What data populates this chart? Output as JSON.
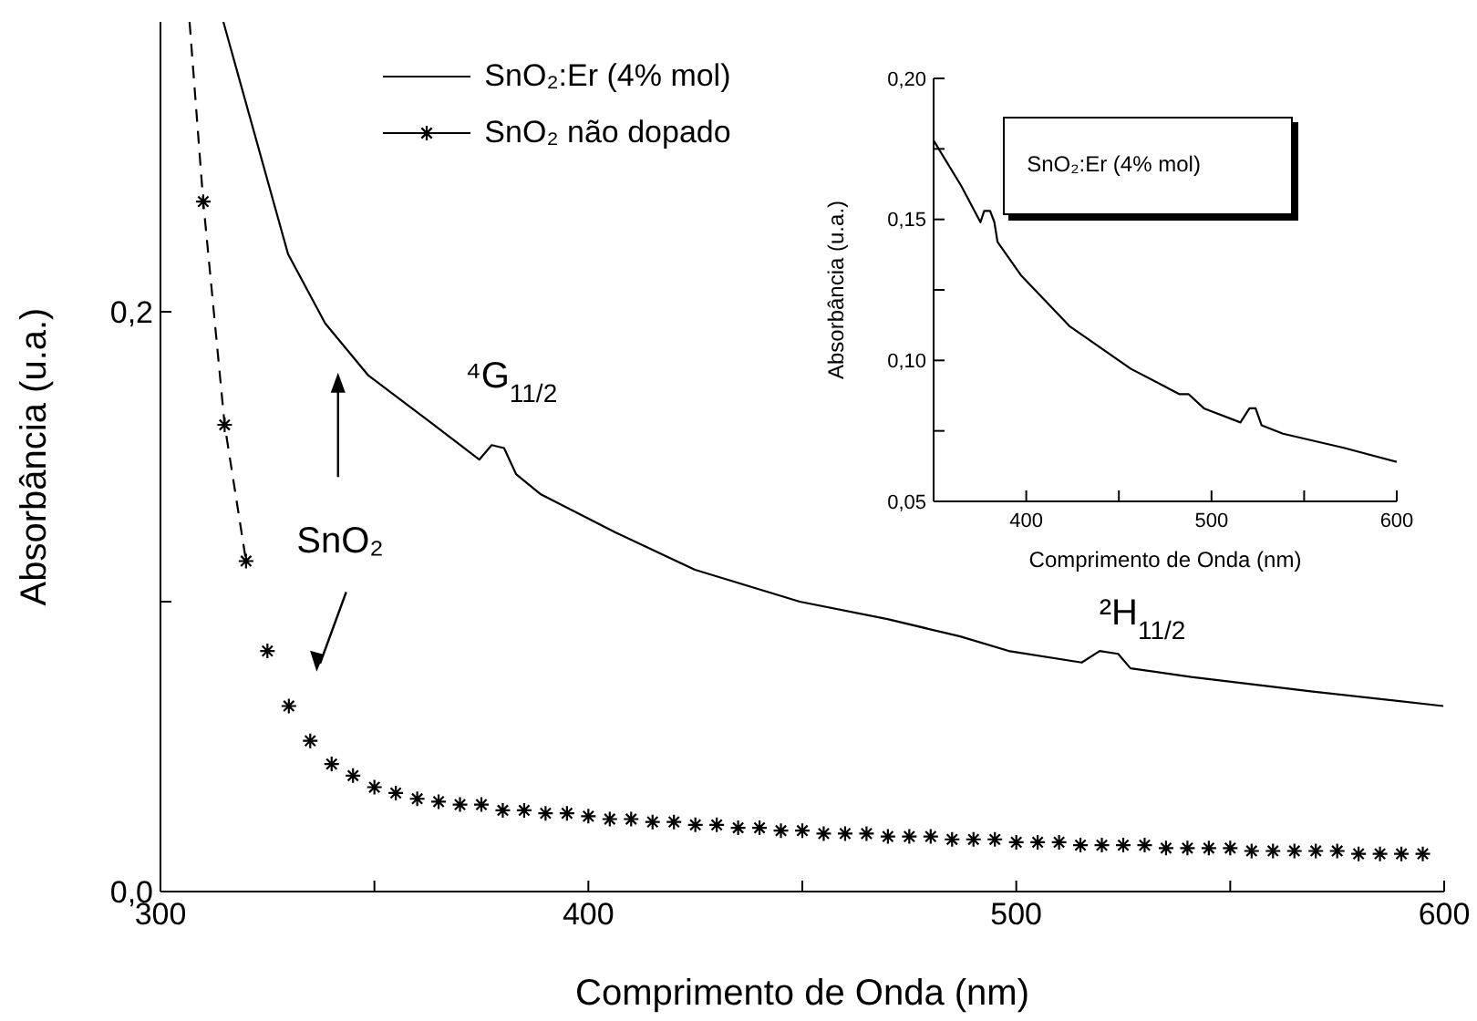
{
  "chart_data": [
    {
      "type": "line",
      "xlabel": "Comprimento de Onda (nm)",
      "ylabel": "Absorbância (u.a.)",
      "xlim": [
        300,
        600
      ],
      "xticks": [
        300,
        {
          "value": 350,
          "label": null
        },
        400,
        {
          "value": 450,
          "label": null
        },
        500,
        {
          "value": 550,
          "label": null
        },
        600
      ],
      "ylim": [
        0,
        0.3
      ],
      "yticks": [
        {
          "value": 0,
          "label": "0,0"
        },
        {
          "value": 0.1,
          "label": null
        },
        {
          "value": 0.2,
          "label": "0,2"
        }
      ],
      "legend": "top",
      "grid": false,
      "series": [
        {
          "name": "SnO₂:Er (4% mol)",
          "color": "#000000",
          "marker": "none",
          "line_style": "solid",
          "x": [
            314.7,
            329.8,
            338.5,
            348.6,
            363,
            374.5,
            377.4,
            380.3,
            383.1,
            388.9,
            406.2,
            424.9,
            449.4,
            469.9,
            486.9,
            498.2,
            515.3,
            519.5,
            523.8,
            526.7,
            540.9,
            569.3,
            599.8
          ],
          "values": [
            0.3,
            0.22,
            0.196,
            0.178,
            0.162,
            0.149,
            0.154,
            0.153,
            0.144,
            0.137,
            0.124,
            0.111,
            0.1,
            0.094,
            0.088,
            0.083,
            0.079,
            0.083,
            0.082,
            0.077,
            0.074,
            0.069,
            0.064
          ]
        },
        {
          "name": "SnO₂ não dopado",
          "type": "scatter",
          "color": "#000000",
          "marker": "cross",
          "x": [
            310,
            315,
            320,
            325,
            330,
            335,
            340,
            345,
            350,
            355,
            360,
            365,
            370,
            375,
            380,
            385,
            390,
            395,
            400,
            405,
            410,
            415,
            420,
            425,
            430,
            435,
            440,
            445,
            450,
            455,
            460,
            465,
            470,
            475,
            480,
            485,
            490,
            495,
            500,
            505,
            510,
            515,
            520,
            525,
            530,
            535,
            540,
            545,
            550,
            555,
            560,
            565,
            570,
            575,
            580,
            585,
            590,
            595
          ],
          "values": [
            0.238,
            0.161,
            0.114,
            0.083,
            0.064,
            0.052,
            0.044,
            0.04,
            0.036,
            0.034,
            0.032,
            0.031,
            0.03,
            0.03,
            0.028,
            0.028,
            0.027,
            0.027,
            0.026,
            0.025,
            0.025,
            0.024,
            0.024,
            0.023,
            0.023,
            0.022,
            0.022,
            0.021,
            0.021,
            0.02,
            0.02,
            0.02,
            0.019,
            0.019,
            0.019,
            0.018,
            0.018,
            0.018,
            0.017,
            0.017,
            0.017,
            0.016,
            0.016,
            0.016,
            0.016,
            0.015,
            0.015,
            0.015,
            0.015,
            0.014,
            0.014,
            0.014,
            0.014,
            0.014,
            0.013,
            0.013,
            0.013,
            0.013
          ]
        },
        {
          "type": "line",
          "color": "#000000",
          "marker": "none",
          "line_style": "dashed",
          "x": [
            306.8,
            310,
            315,
            320
          ],
          "values": [
            0.3,
            0.238,
            0.161,
            0.114
          ]
        }
      ],
      "annotations": [
        "⁴G$_{11/2}$",
        "²H$_{11/2}$",
        "SnO₂"
      ]
    },
    {
      "type": "line",
      "xlabel": "Comprimento de Onda (nm)",
      "ylabel": "Absorbância (u.a.)",
      "xlim": [
        350,
        600
      ],
      "xticks": [
        400,
        {
          "value": 450,
          "label": null
        },
        500,
        {
          "value": 550,
          "label": null
        },
        600
      ],
      "ylim": [
        0.05,
        0.2
      ],
      "yticks": [
        {
          "value": 0.05,
          "label": "0,05"
        },
        {
          "value": 0.075,
          "label": null
        },
        {
          "value": 0.1,
          "label": "0,10"
        },
        {
          "value": 0.125,
          "label": null
        },
        {
          "value": 0.15,
          "label": "0,15"
        },
        {
          "value": 0.175,
          "label": null
        },
        {
          "value": 0.2,
          "label": "0,20"
        }
      ],
      "legend": "top",
      "grid": false,
      "series": [
        {
          "name": "SnO₂:Er (4% mol)",
          "color": "#000000",
          "marker": "none",
          "line_style": "solid",
          "x": [
            350,
            364.8,
            375.3,
            377.3,
            380.5,
            382.8,
            384.5,
            397.4,
            423.6,
            456.5,
            482.8,
            487.7,
            495.9,
            515.6,
            520.5,
            523.8,
            527,
            538.6,
            571.4,
            600
          ],
          "values": [
            0.178,
            0.162,
            0.149,
            0.153,
            0.153,
            0.149,
            0.142,
            0.13,
            0.112,
            0.097,
            0.088,
            0.088,
            0.083,
            0.078,
            0.083,
            0.083,
            0.077,
            0.074,
            0.069,
            0.064
          ]
        }
      ]
    }
  ]
}
